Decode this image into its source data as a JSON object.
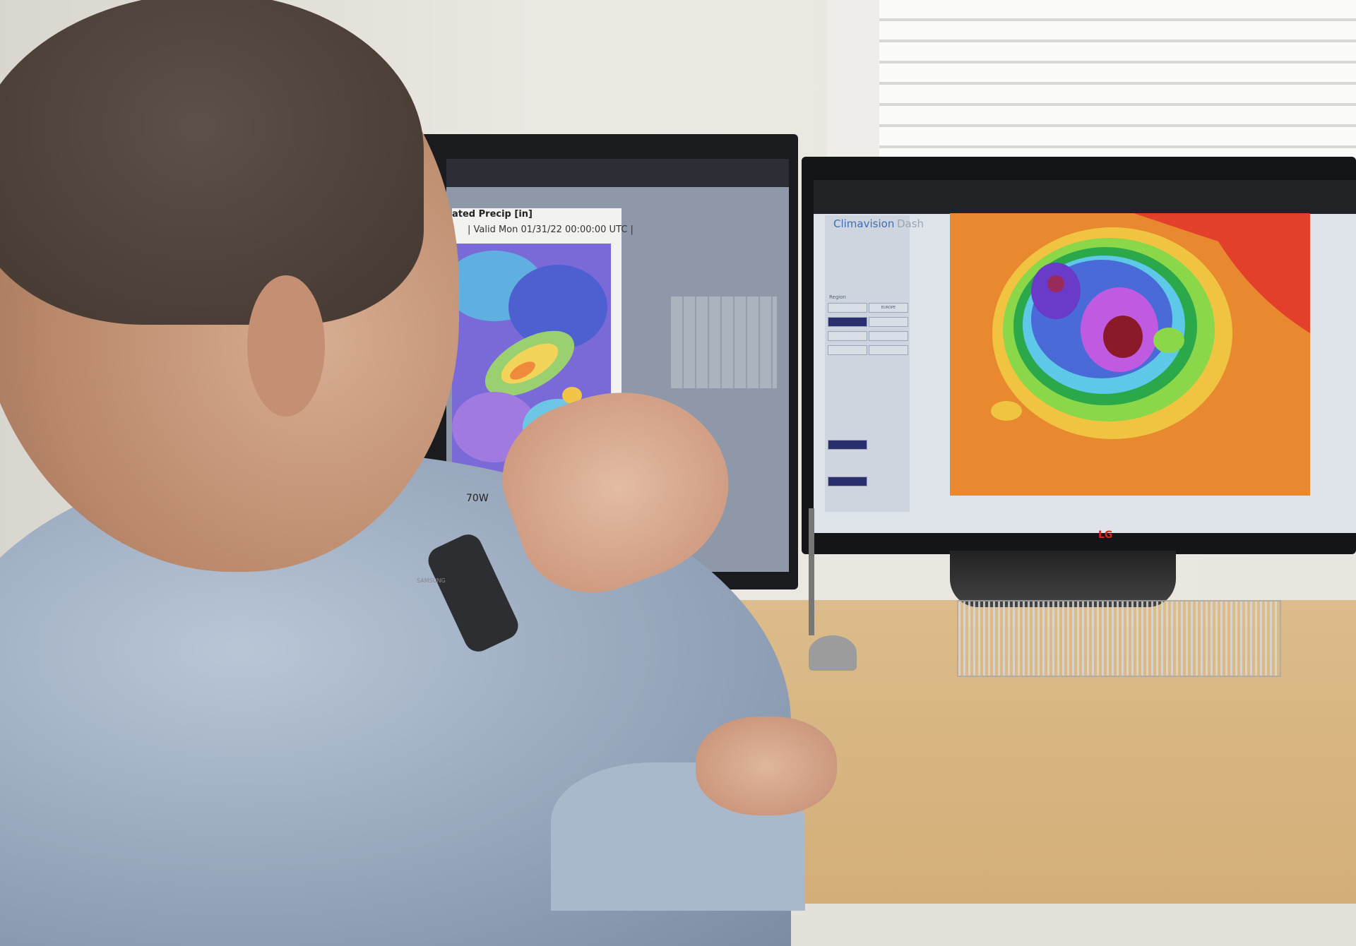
{
  "left_monitor": {
    "brand": "SAMSUNG",
    "map_title": "ated Precip [in]",
    "valid_time": "| Valid Mon 01/31/22 00:00:00 UTC |",
    "x_axis_label": "70W"
  },
  "right_monitor": {
    "brand": "LG",
    "app_logo": "Climavision",
    "app_section": "Dash",
    "sidebar": {
      "region_heading": "Region",
      "region_buttons": [
        {
          "label": "",
          "selected": false
        },
        {
          "label": "EUROPE",
          "selected": false
        },
        {
          "label": "",
          "selected": true
        },
        {
          "label": "",
          "selected": false
        },
        {
          "label": "",
          "selected": false
        },
        {
          "label": "",
          "selected": false
        },
        {
          "label": "",
          "selected": false
        },
        {
          "label": "",
          "selected": false
        }
      ]
    }
  },
  "colors": {
    "wall": "#e4e1da",
    "desk": "#d9b988",
    "map_orange": "#e8892f",
    "shirt": "#a3b3c8"
  }
}
